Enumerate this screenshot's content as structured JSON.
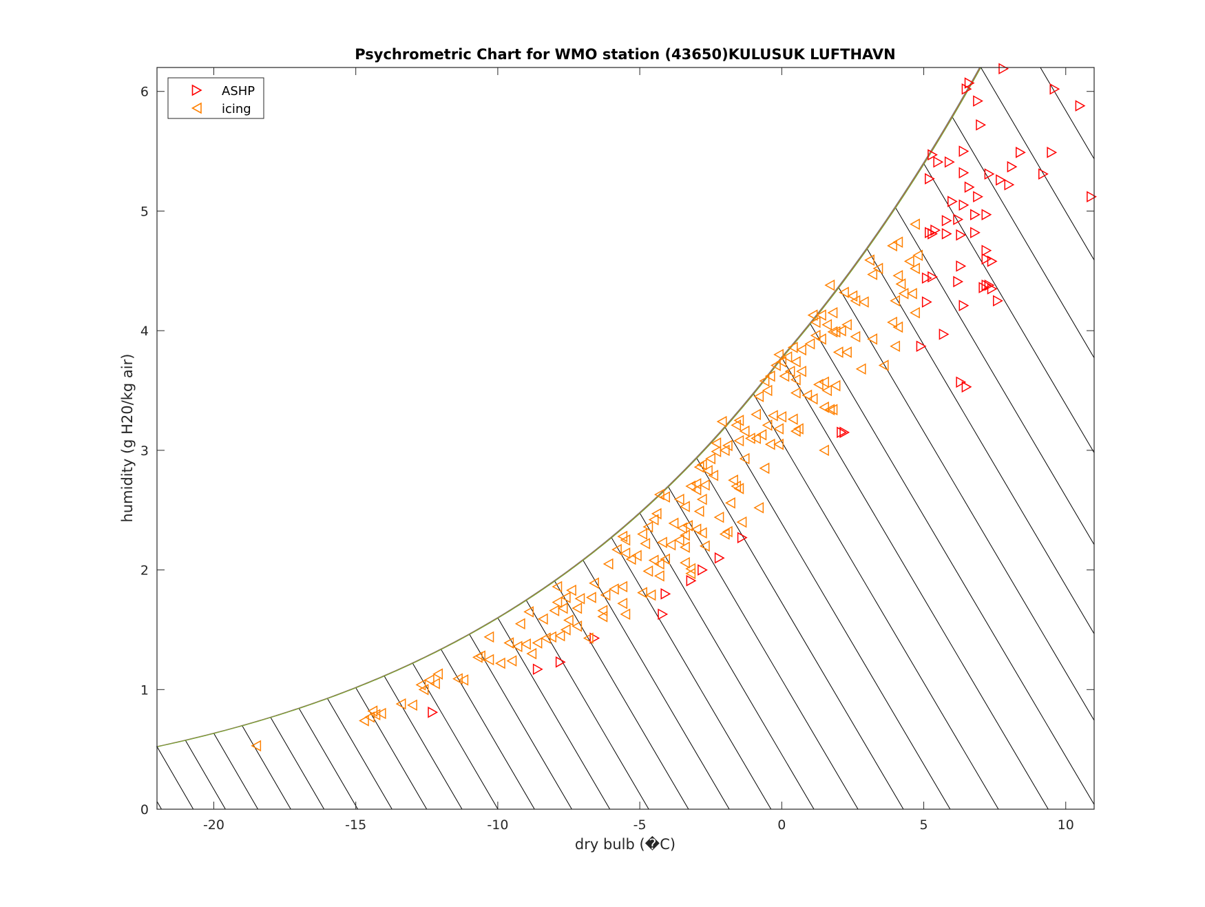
{
  "chart_data": {
    "type": "scatter",
    "title": "Psychrometric Chart for WMO station (43650)KULUSUK LUFTHAVN",
    "xlabel": "dry bulb (�C)",
    "ylabel": "humidity (g H20/kg air)",
    "xlim": [
      -22,
      11
    ],
    "ylim": [
      0,
      6.2
    ],
    "xticks": [
      -20,
      -15,
      -10,
      -5,
      0,
      5,
      10
    ],
    "yticks": [
      0,
      1,
      2,
      3,
      4,
      5,
      6
    ],
    "xtick_labels": [
      "-20",
      "-15",
      "-10",
      "-5",
      "0",
      "5",
      "10"
    ],
    "ytick_labels": [
      "0",
      "1",
      "2",
      "3",
      "4",
      "5",
      "6"
    ],
    "grid": false,
    "legend_position": "top-left",
    "saturation_curve_colors": [
      "#0072bd",
      "#d95319",
      "#edb120",
      "#7e2f8e",
      "#77ac30"
    ],
    "series": [
      {
        "name": "ASHP",
        "marker": "triangle-right",
        "color": "#ff0000",
        "points": [
          [
            7.8,
            6.19
          ],
          [
            6.6,
            6.07
          ],
          [
            6.5,
            6.02
          ],
          [
            6.9,
            5.92
          ],
          [
            9.6,
            6.02
          ],
          [
            10.5,
            5.88
          ],
          [
            7.0,
            5.72
          ],
          [
            5.3,
            5.47
          ],
          [
            5.5,
            5.41
          ],
          [
            5.9,
            5.41
          ],
          [
            6.4,
            5.5
          ],
          [
            8.4,
            5.49
          ],
          [
            9.5,
            5.49
          ],
          [
            8.1,
            5.37
          ],
          [
            6.4,
            5.32
          ],
          [
            7.3,
            5.31
          ],
          [
            7.7,
            5.26
          ],
          [
            9.2,
            5.31
          ],
          [
            8.0,
            5.22
          ],
          [
            5.2,
            5.27
          ],
          [
            6.6,
            5.2
          ],
          [
            6.9,
            5.12
          ],
          [
            6.0,
            5.08
          ],
          [
            6.4,
            5.05
          ],
          [
            7.2,
            4.97
          ],
          [
            6.8,
            4.97
          ],
          [
            10.9,
            5.12
          ],
          [
            6.2,
            4.93
          ],
          [
            5.8,
            4.92
          ],
          [
            5.4,
            4.84
          ],
          [
            5.3,
            4.81
          ],
          [
            5.2,
            4.82
          ],
          [
            5.8,
            4.81
          ],
          [
            6.3,
            4.8
          ],
          [
            6.8,
            4.82
          ],
          [
            7.2,
            4.67
          ],
          [
            7.2,
            4.6
          ],
          [
            7.4,
            4.58
          ],
          [
            6.3,
            4.54
          ],
          [
            5.3,
            4.45
          ],
          [
            5.1,
            4.44
          ],
          [
            6.2,
            4.41
          ],
          [
            7.2,
            4.38
          ],
          [
            7.3,
            4.38
          ],
          [
            7.1,
            4.36
          ],
          [
            7.4,
            4.35
          ],
          [
            7.6,
            4.25
          ],
          [
            5.1,
            4.24
          ],
          [
            6.4,
            4.21
          ],
          [
            5.7,
            3.97
          ],
          [
            4.9,
            3.87
          ],
          [
            6.3,
            3.57
          ],
          [
            6.5,
            3.53
          ],
          [
            2.1,
            3.15
          ],
          [
            2.2,
            3.15
          ],
          [
            -1.4,
            2.27
          ],
          [
            -2.2,
            2.1
          ],
          [
            -2.8,
            2.0
          ],
          [
            -3.2,
            1.91
          ],
          [
            -4.1,
            1.8
          ],
          [
            -4.2,
            1.63
          ],
          [
            -6.6,
            1.43
          ],
          [
            -7.8,
            1.23
          ],
          [
            -8.6,
            1.17
          ],
          [
            -12.3,
            0.81
          ]
        ]
      },
      {
        "name": "icing",
        "marker": "triangle-left",
        "color": "#ff8000",
        "points": [
          [
            4.7,
            4.89
          ],
          [
            4.1,
            4.74
          ],
          [
            3.9,
            4.71
          ],
          [
            4.8,
            4.63
          ],
          [
            3.1,
            4.59
          ],
          [
            3.2,
            4.47
          ],
          [
            3.4,
            4.52
          ],
          [
            4.5,
            4.58
          ],
          [
            4.7,
            4.52
          ],
          [
            4.1,
            4.46
          ],
          [
            4.2,
            4.39
          ],
          [
            4.0,
            4.25
          ],
          [
            4.3,
            4.31
          ],
          [
            4.6,
            4.31
          ],
          [
            1.7,
            4.38
          ],
          [
            2.2,
            4.32
          ],
          [
            2.5,
            4.29
          ],
          [
            2.6,
            4.25
          ],
          [
            2.9,
            4.24
          ],
          [
            1.8,
            4.15
          ],
          [
            1.4,
            4.13
          ],
          [
            1.1,
            4.13
          ],
          [
            1.2,
            4.07
          ],
          [
            1.6,
            4.05
          ],
          [
            2.3,
            4.05
          ],
          [
            1.8,
            3.99
          ],
          [
            1.9,
            3.99
          ],
          [
            2.1,
            4.0
          ],
          [
            2.6,
            3.95
          ],
          [
            1.4,
            3.93
          ],
          [
            3.2,
            3.93
          ],
          [
            2.0,
            3.82
          ],
          [
            2.3,
            3.82
          ],
          [
            3.9,
            4.07
          ],
          [
            4.1,
            4.03
          ],
          [
            4.7,
            4.15
          ],
          [
            4.0,
            3.87
          ],
          [
            1.2,
            3.96
          ],
          [
            1.0,
            3.89
          ],
          [
            0.4,
            3.86
          ],
          [
            0.7,
            3.84
          ],
          [
            -0.1,
            3.8
          ],
          [
            0.2,
            3.78
          ],
          [
            0.5,
            3.74
          ],
          [
            0.0,
            3.74
          ],
          [
            -0.2,
            3.71
          ],
          [
            0.3,
            3.66
          ],
          [
            0.7,
            3.66
          ],
          [
            -0.4,
            3.62
          ],
          [
            0.1,
            3.62
          ],
          [
            2.8,
            3.68
          ],
          [
            3.6,
            3.71
          ],
          [
            0.5,
            3.59
          ],
          [
            1.3,
            3.55
          ],
          [
            1.5,
            3.57
          ],
          [
            1.6,
            3.5
          ],
          [
            1.9,
            3.54
          ],
          [
            -0.6,
            3.58
          ],
          [
            -0.8,
            3.45
          ],
          [
            -0.5,
            3.5
          ],
          [
            0.5,
            3.48
          ],
          [
            0.9,
            3.46
          ],
          [
            1.1,
            3.43
          ],
          [
            1.5,
            3.36
          ],
          [
            1.7,
            3.34
          ],
          [
            1.8,
            3.34
          ],
          [
            -0.9,
            3.3
          ],
          [
            -0.3,
            3.29
          ],
          [
            0.0,
            3.28
          ],
          [
            0.4,
            3.26
          ],
          [
            -1.5,
            3.25
          ],
          [
            -2.1,
            3.24
          ],
          [
            -1.6,
            3.21
          ],
          [
            -0.5,
            3.21
          ],
          [
            -0.1,
            3.18
          ],
          [
            0.5,
            3.16
          ],
          [
            0.6,
            3.18
          ],
          [
            -1.3,
            3.16
          ],
          [
            -0.7,
            3.13
          ],
          [
            -0.9,
            3.1
          ],
          [
            -1.1,
            3.1
          ],
          [
            -1.5,
            3.08
          ],
          [
            -2.3,
            3.06
          ],
          [
            -1.9,
            3.04
          ],
          [
            -2.0,
            3.0
          ],
          [
            -2.3,
            2.99
          ],
          [
            -0.4,
            3.05
          ],
          [
            -0.1,
            3.05
          ],
          [
            1.5,
            3.0
          ],
          [
            -2.5,
            2.93
          ],
          [
            -1.3,
            2.93
          ],
          [
            -0.6,
            2.85
          ],
          [
            -2.8,
            2.88
          ],
          [
            -2.9,
            2.86
          ],
          [
            -2.6,
            2.83
          ],
          [
            -2.4,
            2.79
          ],
          [
            -1.7,
            2.75
          ],
          [
            -3.0,
            2.72
          ],
          [
            -2.7,
            2.71
          ],
          [
            -3.2,
            2.7
          ],
          [
            -1.6,
            2.7
          ],
          [
            -3.0,
            2.67
          ],
          [
            -1.5,
            2.68
          ],
          [
            -2.8,
            2.59
          ],
          [
            -1.8,
            2.56
          ],
          [
            -0.8,
            2.52
          ],
          [
            -4.3,
            2.63
          ],
          [
            -4.1,
            2.61
          ],
          [
            -3.6,
            2.59
          ],
          [
            -3.4,
            2.53
          ],
          [
            -2.9,
            2.49
          ],
          [
            -4.4,
            2.47
          ],
          [
            -4.5,
            2.42
          ],
          [
            -3.8,
            2.39
          ],
          [
            -3.3,
            2.37
          ],
          [
            -2.2,
            2.44
          ],
          [
            -1.4,
            2.4
          ],
          [
            -4.7,
            2.36
          ],
          [
            -3.5,
            2.35
          ],
          [
            -3.0,
            2.34
          ],
          [
            -2.8,
            2.31
          ],
          [
            -2.0,
            2.3
          ],
          [
            -1.9,
            2.32
          ],
          [
            -4.9,
            2.3
          ],
          [
            -3.4,
            2.29
          ],
          [
            -3.6,
            2.25
          ],
          [
            -5.6,
            2.28
          ],
          [
            -5.5,
            2.25
          ],
          [
            -4.8,
            2.22
          ],
          [
            -4.2,
            2.23
          ],
          [
            -3.9,
            2.21
          ],
          [
            -3.4,
            2.19
          ],
          [
            -2.7,
            2.2
          ],
          [
            -5.8,
            2.17
          ],
          [
            -5.5,
            2.14
          ],
          [
            -5.1,
            2.12
          ],
          [
            -5.3,
            2.09
          ],
          [
            -4.5,
            2.08
          ],
          [
            -4.1,
            2.09
          ],
          [
            -3.4,
            2.06
          ],
          [
            -4.3,
            2.05
          ],
          [
            -3.2,
            2.01
          ],
          [
            -3.2,
            1.97
          ],
          [
            -6.1,
            2.05
          ],
          [
            -4.7,
            1.99
          ],
          [
            -4.3,
            1.95
          ],
          [
            -5.6,
            1.86
          ],
          [
            -5.9,
            1.84
          ],
          [
            -6.6,
            1.89
          ],
          [
            -6.2,
            1.79
          ],
          [
            -4.9,
            1.81
          ],
          [
            -4.6,
            1.79
          ],
          [
            -5.6,
            1.72
          ],
          [
            -7.4,
            1.83
          ],
          [
            -7.6,
            1.77
          ],
          [
            -7.1,
            1.76
          ],
          [
            -6.7,
            1.77
          ],
          [
            -7.9,
            1.73
          ],
          [
            -7.7,
            1.68
          ],
          [
            -7.2,
            1.68
          ],
          [
            -6.3,
            1.66
          ],
          [
            -6.3,
            1.61
          ],
          [
            -5.5,
            1.63
          ],
          [
            -7.9,
            1.86
          ],
          [
            -8.0,
            1.66
          ],
          [
            -8.4,
            1.59
          ],
          [
            -8.9,
            1.65
          ],
          [
            -9.2,
            1.55
          ],
          [
            -7.5,
            1.58
          ],
          [
            -7.2,
            1.53
          ],
          [
            -7.6,
            1.5
          ],
          [
            -6.8,
            1.43
          ],
          [
            -7.8,
            1.45
          ],
          [
            -8.1,
            1.44
          ],
          [
            -8.3,
            1.43
          ],
          [
            -8.6,
            1.39
          ],
          [
            -9.0,
            1.38
          ],
          [
            -9.3,
            1.36
          ],
          [
            -9.6,
            1.39
          ],
          [
            -10.3,
            1.44
          ],
          [
            -10.6,
            1.28
          ],
          [
            -10.7,
            1.27
          ],
          [
            -10.3,
            1.25
          ],
          [
            -9.9,
            1.22
          ],
          [
            -9.5,
            1.24
          ],
          [
            -8.8,
            1.3
          ],
          [
            -11.4,
            1.09
          ],
          [
            -11.2,
            1.08
          ],
          [
            -12.1,
            1.13
          ],
          [
            -12.4,
            1.08
          ],
          [
            -12.2,
            1.05
          ],
          [
            -12.7,
            1.04
          ],
          [
            -12.6,
            1.0
          ],
          [
            -13.4,
            0.88
          ],
          [
            -13.0,
            0.87
          ],
          [
            -14.4,
            0.82
          ],
          [
            -14.5,
            0.77
          ],
          [
            -14.3,
            0.79
          ],
          [
            -14.1,
            0.8
          ],
          [
            -14.7,
            0.74
          ],
          [
            -18.5,
            0.53
          ]
        ]
      }
    ]
  }
}
